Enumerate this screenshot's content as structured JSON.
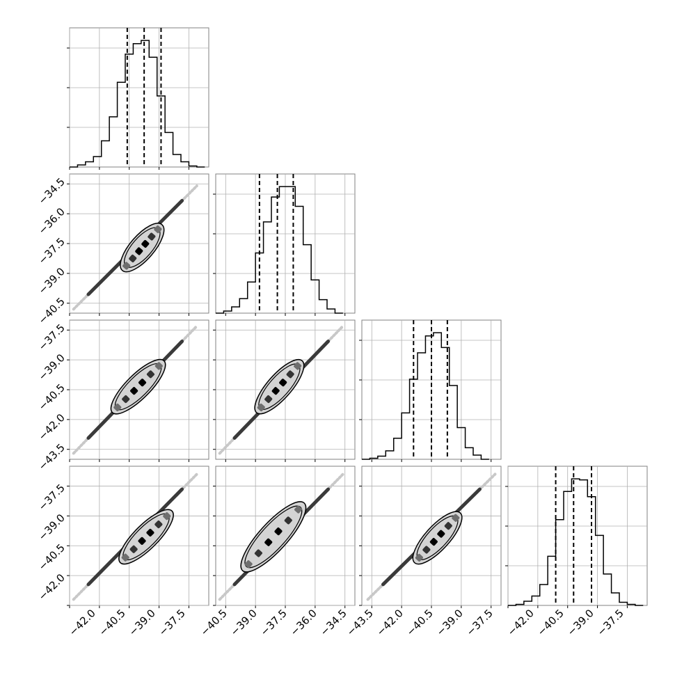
{
  "figure": {
    "type": "corner_plot",
    "grid": true,
    "colors": {
      "line": "#000000",
      "grid": "#b0b0b0",
      "frame": "#808080",
      "background": "#ffffff"
    }
  },
  "chart_data": [
    {
      "panel": "hist-1",
      "type": "histogram",
      "xlim": [
        -43.5,
        -36.5
      ],
      "bin_edges": [
        -43.5,
        -43.1,
        -42.7,
        -42.3,
        -41.9,
        -41.5,
        -41.1,
        -40.7,
        -40.3,
        -39.9,
        -39.5,
        -39.1,
        -38.7,
        -38.3,
        -37.9,
        -37.5,
        -37.1,
        -36.7
      ],
      "counts": [
        0,
        2,
        5,
        10,
        25,
        48,
        81,
        108,
        118,
        121,
        105,
        68,
        33,
        12,
        5,
        1,
        0
      ],
      "quantile_lines": [
        -40.6,
        -39.75,
        -38.9
      ]
    },
    {
      "panel": "hist-2",
      "type": "histogram",
      "xlim": [
        -41.0,
        -34.0
      ],
      "bin_edges": [
        -41.0,
        -40.6,
        -40.2,
        -39.8,
        -39.4,
        -39.0,
        -38.6,
        -38.2,
        -37.8,
        -37.4,
        -37.0,
        -36.6,
        -36.2,
        -35.8,
        -35.4,
        -35.0,
        -34.6
      ],
      "counts": [
        0,
        2,
        6,
        14,
        30,
        58,
        88,
        112,
        122,
        122,
        103,
        66,
        32,
        13,
        4,
        0
      ],
      "quantile_lines": [
        -38.8,
        -37.9,
        -37.1
      ]
    },
    {
      "panel": "hist-3",
      "type": "histogram",
      "xlim": [
        -44.0,
        -37.0
      ],
      "bin_edges": [
        -44.0,
        -43.6,
        -43.2,
        -42.8,
        -42.4,
        -42.0,
        -41.6,
        -41.2,
        -40.8,
        -40.4,
        -40.0,
        -39.6,
        -39.2,
        -38.8,
        -38.4,
        -38.0,
        -37.6
      ],
      "counts": [
        0,
        1,
        3,
        8,
        20,
        44,
        76,
        101,
        117,
        120,
        106,
        70,
        30,
        11,
        4,
        0
      ],
      "quantile_lines": [
        -41.4,
        -40.5,
        -39.7
      ]
    },
    {
      "panel": "hist-4",
      "type": "histogram",
      "xlim": [
        -43.5,
        -36.5
      ],
      "bin_edges": [
        -43.5,
        -43.1,
        -42.7,
        -42.3,
        -41.9,
        -41.5,
        -41.1,
        -40.7,
        -40.3,
        -39.9,
        -39.5,
        -39.1,
        -38.7,
        -38.3,
        -37.9,
        -37.5,
        -37.1,
        -36.7
      ],
      "counts": [
        0,
        1,
        4,
        9,
        20,
        47,
        82,
        109,
        121,
        120,
        104,
        67,
        30,
        12,
        3,
        1,
        0
      ],
      "quantile_lines": [
        -41.1,
        -40.2,
        -39.3
      ]
    },
    {
      "panel": "joint-2-1",
      "type": "scatter_density",
      "xlim": [
        -43.5,
        -36.5
      ],
      "ylim": [
        -41.0,
        -34.0
      ],
      "diagonal": [
        [
          -43.3,
          -40.8
        ],
        [
          -37.1,
          -34.6
        ]
      ],
      "core": [
        [
          -40.8,
          -38.8
        ],
        [
          -38.9,
          -36.6
        ]
      ],
      "contour_width": 0.5
    },
    {
      "panel": "joint-3-1",
      "type": "scatter_density",
      "xlim": [
        -43.5,
        -36.5
      ],
      "ylim": [
        -44.0,
        -37.0
      ],
      "diagonal": [
        [
          -43.3,
          -43.7
        ],
        [
          -37.1,
          -37.3
        ]
      ],
      "core": [
        [
          -41.3,
          -41.6
        ],
        [
          -38.8,
          -39.1
        ]
      ],
      "contour_width": 0.5
    },
    {
      "panel": "joint-3-2",
      "type": "scatter_density",
      "xlim": [
        -41.0,
        -34.0
      ],
      "ylim": [
        -44.0,
        -37.0
      ],
      "diagonal": [
        [
          -40.8,
          -43.7
        ],
        [
          -34.6,
          -37.3
        ]
      ],
      "core": [
        [
          -38.9,
          -41.6
        ],
        [
          -36.7,
          -39.1
        ]
      ],
      "contour_width": 0.5
    },
    {
      "panel": "joint-4-1",
      "type": "scatter_density",
      "xlim": [
        -43.5,
        -36.5
      ],
      "ylim": [
        -43.5,
        -36.5
      ],
      "diagonal": [
        [
          -43.3,
          -43.2
        ],
        [
          -37.1,
          -36.9
        ]
      ],
      "core": [
        [
          -40.9,
          -41.3
        ],
        [
          -38.4,
          -38.8
        ]
      ],
      "contour_width": 0.5
    },
    {
      "panel": "joint-4-2",
      "type": "scatter_density",
      "xlim": [
        -41.0,
        -34.0
      ],
      "ylim": [
        -43.5,
        -36.5
      ],
      "diagonal": [
        [
          -40.8,
          -43.2
        ],
        [
          -34.6,
          -36.9
        ]
      ],
      "core": [
        [
          -39.6,
          -41.7
        ],
        [
          -36.6,
          -38.4
        ]
      ],
      "contour_width": 0.6
    },
    {
      "panel": "joint-4-3",
      "type": "scatter_density",
      "xlim": [
        -44.0,
        -37.0
      ],
      "ylim": [
        -43.5,
        -36.5
      ],
      "diagonal": [
        [
          -43.7,
          -43.2
        ],
        [
          -37.3,
          -36.9
        ]
      ],
      "core": [
        [
          -41.3,
          -41.3
        ],
        [
          -39.1,
          -38.9
        ]
      ],
      "contour_width": 0.5
    }
  ],
  "ticks": {
    "panel_1_y": [
      "-34.5",
      "-36.0",
      "-37.5",
      "-39.0",
      "-40.5"
    ],
    "panel_2_y": [
      "-37.5",
      "-39.0",
      "-40.5",
      "-42.0",
      "-43.5"
    ],
    "panel_3_y": [
      "-37.5",
      "-39.0",
      "-40.5",
      "-42.0"
    ],
    "col_1_x": [
      "-42.0",
      "-40.5",
      "-39.0",
      "-37.5"
    ],
    "col_2_x": [
      "-40.5",
      "-39.0",
      "-37.5",
      "-36.0",
      "-34.5"
    ],
    "col_3_x": [
      "-43.5",
      "-42.0",
      "-40.5",
      "-39.0",
      "-37.5"
    ],
    "col_4_x": [
      "-42.0",
      "-40.5",
      "-39.0",
      "-37.5"
    ]
  }
}
